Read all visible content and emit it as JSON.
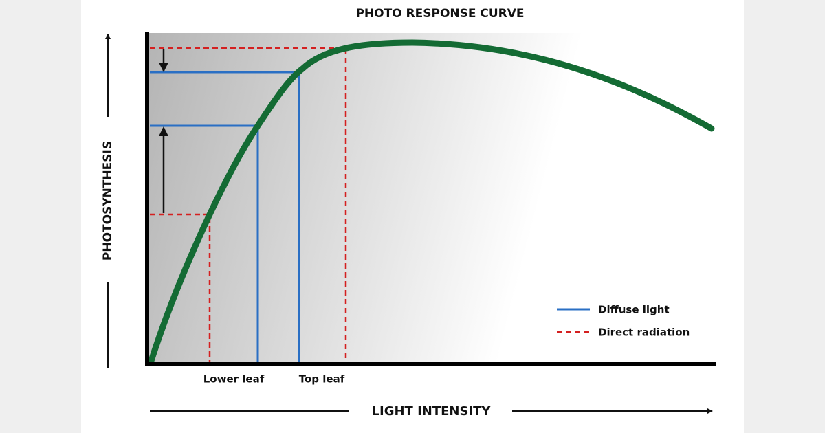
{
  "title": "PHOTO RESPONSE CURVE",
  "y_axis_label": "PHOTOSYNTHESIS",
  "x_axis_label": "LIGHT INTENSITY",
  "x_labels": [
    "Lower leaf",
    "Top leaf"
  ],
  "legend": [
    {
      "label": "Diffuse light"
    },
    {
      "label": "Direct radiation"
    }
  ]
}
